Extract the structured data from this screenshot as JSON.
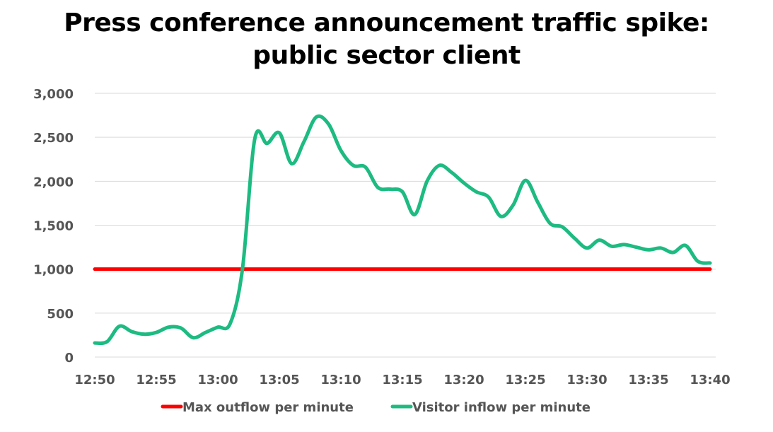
{
  "chart_data": {
    "type": "line",
    "title_line1": "Press conference announcement traffic spike:",
    "title_line2": "public sector client",
    "xlabel": "",
    "ylabel": "",
    "ylim": [
      0,
      3000
    ],
    "y_ticks": [
      0,
      500,
      1000,
      1500,
      2000,
      2500,
      3000
    ],
    "y_tick_labels": [
      "0",
      "500",
      "1,000",
      "1,500",
      "2,000",
      "2,500",
      "3,000"
    ],
    "x_tick_labels": [
      "12:50",
      "12:55",
      "13:00",
      "13:05",
      "13:10",
      "13:15",
      "13:20",
      "13:25",
      "13:30",
      "13:35",
      "13:40"
    ],
    "grid": true,
    "legend_position": "bottom",
    "colors": {
      "max_outflow": "#ff0000",
      "visitor_inflow": "#1dbb82",
      "grid": "#d9d9d9",
      "tick_text": "#555555"
    },
    "x": [
      "12:50",
      "12:51",
      "12:52",
      "12:53",
      "12:54",
      "12:55",
      "12:56",
      "12:57",
      "12:58",
      "12:59",
      "13:00",
      "13:01",
      "13:02",
      "13:03",
      "13:04",
      "13:05",
      "13:06",
      "13:07",
      "13:08",
      "13:09",
      "13:10",
      "13:11",
      "13:12",
      "13:13",
      "13:14",
      "13:15",
      "13:16",
      "13:17",
      "13:18",
      "13:19",
      "13:20",
      "13:21",
      "13:22",
      "13:23",
      "13:24",
      "13:25",
      "13:26",
      "13:27",
      "13:28",
      "13:29",
      "13:30",
      "13:31",
      "13:32",
      "13:33",
      "13:34",
      "13:35",
      "13:36",
      "13:37",
      "13:38",
      "13:39",
      "13:40"
    ],
    "series": [
      {
        "name": "Max outflow per minute",
        "values": [
          1000,
          1000,
          1000,
          1000,
          1000,
          1000,
          1000,
          1000,
          1000,
          1000,
          1000,
          1000,
          1000,
          1000,
          1000,
          1000,
          1000,
          1000,
          1000,
          1000,
          1000,
          1000,
          1000,
          1000,
          1000,
          1000,
          1000,
          1000,
          1000,
          1000,
          1000,
          1000,
          1000,
          1000,
          1000,
          1000,
          1000,
          1000,
          1000,
          1000,
          1000,
          1000,
          1000,
          1000,
          1000,
          1000,
          1000,
          1000,
          1000,
          1000,
          1000
        ]
      },
      {
        "name": "Visitor inflow per minute",
        "values": [
          160,
          175,
          350,
          290,
          260,
          280,
          340,
          330,
          220,
          280,
          340,
          380,
          1000,
          2480,
          2430,
          2550,
          2200,
          2450,
          2730,
          2650,
          2350,
          2180,
          2160,
          1930,
          1910,
          1880,
          1620,
          2000,
          2180,
          2100,
          1980,
          1880,
          1820,
          1600,
          1730,
          2010,
          1760,
          1520,
          1480,
          1350,
          1240,
          1330,
          1260,
          1280,
          1250,
          1220,
          1240,
          1190,
          1270,
          1090,
          1070
        ]
      }
    ]
  }
}
